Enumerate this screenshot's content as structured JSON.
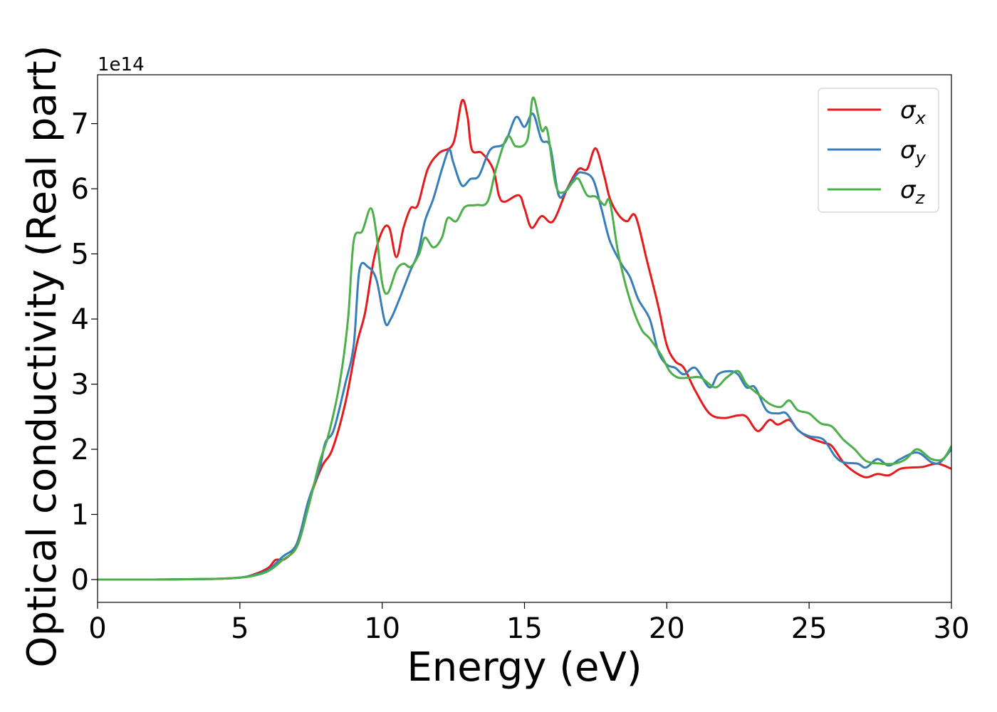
{
  "chart_data": {
    "type": "line",
    "xlabel": "Energy (eV)",
    "ylabel": "Optical conductivity (Real part)",
    "y_offset_label": "1e14",
    "xlim": [
      0,
      30
    ],
    "ylim": [
      -0.35,
      7.75
    ],
    "x_ticks": [
      0,
      5,
      10,
      15,
      20,
      25,
      30
    ],
    "x_tick_labels": [
      "0",
      "5",
      "10",
      "15",
      "20",
      "25",
      "30"
    ],
    "y_ticks": [
      0,
      1,
      2,
      3,
      4,
      5,
      6,
      7
    ],
    "y_tick_labels": [
      "0",
      "1",
      "2",
      "3",
      "4",
      "5",
      "6",
      "7"
    ],
    "grid": false,
    "legend_position": "top-right",
    "series": [
      {
        "name": "σ",
        "subscript": "x",
        "color": "#e41a1c",
        "points": [
          [
            0,
            0
          ],
          [
            2,
            0
          ],
          [
            4,
            0.01
          ],
          [
            5,
            0.03
          ],
          [
            5.5,
            0.08
          ],
          [
            6,
            0.18
          ],
          [
            6.25,
            0.3
          ],
          [
            6.6,
            0.32
          ],
          [
            7,
            0.55
          ],
          [
            7.5,
            1.3
          ],
          [
            7.9,
            1.75
          ],
          [
            8.25,
            2.0
          ],
          [
            8.7,
            2.7
          ],
          [
            9.1,
            3.6
          ],
          [
            9.4,
            4.1
          ],
          [
            9.7,
            4.9
          ],
          [
            10,
            5.35
          ],
          [
            10.25,
            5.4
          ],
          [
            10.5,
            4.95
          ],
          [
            10.75,
            5.4
          ],
          [
            11,
            5.7
          ],
          [
            11.25,
            5.75
          ],
          [
            11.6,
            6.3
          ],
          [
            12,
            6.55
          ],
          [
            12.5,
            6.7
          ],
          [
            12.8,
            7.35
          ],
          [
            13,
            7.1
          ],
          [
            13.15,
            6.6
          ],
          [
            13.5,
            6.55
          ],
          [
            13.9,
            6.3
          ],
          [
            14.1,
            5.9
          ],
          [
            14.3,
            5.8
          ],
          [
            14.8,
            5.9
          ],
          [
            15,
            5.7
          ],
          [
            15.25,
            5.4
          ],
          [
            15.6,
            5.58
          ],
          [
            16,
            5.5
          ],
          [
            16.5,
            6
          ],
          [
            16.9,
            6.3
          ],
          [
            17.2,
            6.3
          ],
          [
            17.5,
            6.62
          ],
          [
            17.8,
            6.2
          ],
          [
            18,
            5.85
          ],
          [
            18.3,
            5.6
          ],
          [
            18.6,
            5.5
          ],
          [
            18.9,
            5.58
          ],
          [
            19.3,
            4.9
          ],
          [
            19.7,
            4.2
          ],
          [
            20,
            3.6
          ],
          [
            20.3,
            3.35
          ],
          [
            20.6,
            3.25
          ],
          [
            21,
            2.9
          ],
          [
            21.5,
            2.55
          ],
          [
            22,
            2.48
          ],
          [
            22.5,
            2.52
          ],
          [
            22.8,
            2.5
          ],
          [
            23.2,
            2.28
          ],
          [
            23.6,
            2.45
          ],
          [
            23.9,
            2.38
          ],
          [
            24.3,
            2.45
          ],
          [
            24.6,
            2.3
          ],
          [
            25,
            2.18
          ],
          [
            25.5,
            2.1
          ],
          [
            25.8,
            2.05
          ],
          [
            26.2,
            1.8
          ],
          [
            26.6,
            1.65
          ],
          [
            27,
            1.57
          ],
          [
            27.4,
            1.62
          ],
          [
            27.8,
            1.6
          ],
          [
            28.2,
            1.7
          ],
          [
            28.6,
            1.72
          ],
          [
            29,
            1.73
          ],
          [
            29.5,
            1.78
          ],
          [
            30,
            1.7
          ]
        ]
      },
      {
        "name": "σ",
        "subscript": "y",
        "color": "#377eb8",
        "points": [
          [
            0,
            0
          ],
          [
            2,
            0
          ],
          [
            4,
            0.01
          ],
          [
            5,
            0.03
          ],
          [
            5.5,
            0.07
          ],
          [
            6,
            0.15
          ],
          [
            6.5,
            0.35
          ],
          [
            7,
            0.55
          ],
          [
            7.4,
            1.2
          ],
          [
            7.8,
            1.7
          ],
          [
            8,
            2.1
          ],
          [
            8.3,
            2.3
          ],
          [
            8.7,
            3.0
          ],
          [
            9,
            3.6
          ],
          [
            9.2,
            4.75
          ],
          [
            9.5,
            4.8
          ],
          [
            9.8,
            4.6
          ],
          [
            10.1,
            3.95
          ],
          [
            10.3,
            4.0
          ],
          [
            10.6,
            4.3
          ],
          [
            11,
            4.75
          ],
          [
            11.25,
            5.0
          ],
          [
            11.5,
            5.5
          ],
          [
            11.8,
            5.85
          ],
          [
            12.1,
            6.3
          ],
          [
            12.35,
            6.6
          ],
          [
            12.5,
            6.4
          ],
          [
            12.8,
            6.05
          ],
          [
            13.1,
            6.15
          ],
          [
            13.4,
            6.2
          ],
          [
            13.8,
            6.6
          ],
          [
            14.3,
            6.7
          ],
          [
            14.7,
            7.1
          ],
          [
            15,
            6.95
          ],
          [
            15.3,
            7.15
          ],
          [
            15.6,
            6.75
          ],
          [
            15.9,
            6.65
          ],
          [
            16.2,
            5.9
          ],
          [
            16.5,
            6.0
          ],
          [
            16.8,
            6.2
          ],
          [
            17,
            6.25
          ],
          [
            17.4,
            6.15
          ],
          [
            17.7,
            5.7
          ],
          [
            18,
            5.2
          ],
          [
            18.4,
            4.85
          ],
          [
            18.7,
            4.65
          ],
          [
            19,
            4.3
          ],
          [
            19.4,
            4.0
          ],
          [
            19.7,
            3.5
          ],
          [
            20,
            3.3
          ],
          [
            20.3,
            3.25
          ],
          [
            20.6,
            3.15
          ],
          [
            21,
            3.25
          ],
          [
            21.5,
            2.95
          ],
          [
            21.8,
            3.15
          ],
          [
            22.2,
            3.2
          ],
          [
            22.5,
            3.15
          ],
          [
            22.8,
            2.95
          ],
          [
            23.1,
            2.95
          ],
          [
            23.5,
            2.6
          ],
          [
            23.9,
            2.55
          ],
          [
            24.2,
            2.55
          ],
          [
            24.6,
            2.3
          ],
          [
            25,
            2.2
          ],
          [
            25.5,
            2.15
          ],
          [
            25.9,
            1.9
          ],
          [
            26.2,
            1.8
          ],
          [
            26.7,
            1.78
          ],
          [
            27,
            1.72
          ],
          [
            27.4,
            1.85
          ],
          [
            27.8,
            1.75
          ],
          [
            28.2,
            1.85
          ],
          [
            28.8,
            1.95
          ],
          [
            29.3,
            1.8
          ],
          [
            29.6,
            1.8
          ],
          [
            30,
            2.0
          ]
        ]
      },
      {
        "name": "σ",
        "subscript": "z",
        "color": "#4daf4a",
        "points": [
          [
            0,
            0
          ],
          [
            2,
            0
          ],
          [
            4,
            0.01
          ],
          [
            5,
            0.03
          ],
          [
            5.5,
            0.06
          ],
          [
            6,
            0.13
          ],
          [
            6.5,
            0.3
          ],
          [
            7,
            0.5
          ],
          [
            7.4,
            1.1
          ],
          [
            7.8,
            1.8
          ],
          [
            8.1,
            2.2
          ],
          [
            8.5,
            3.0
          ],
          [
            8.8,
            4.0
          ],
          [
            9,
            5.2
          ],
          [
            9.3,
            5.35
          ],
          [
            9.6,
            5.7
          ],
          [
            9.8,
            5.3
          ],
          [
            10,
            4.55
          ],
          [
            10.2,
            4.4
          ],
          [
            10.5,
            4.75
          ],
          [
            10.75,
            4.85
          ],
          [
            11,
            4.8
          ],
          [
            11.3,
            5.0
          ],
          [
            11.5,
            5.25
          ],
          [
            11.8,
            5.1
          ],
          [
            12.1,
            5.25
          ],
          [
            12.3,
            5.55
          ],
          [
            12.6,
            5.5
          ],
          [
            12.9,
            5.72
          ],
          [
            13.3,
            5.75
          ],
          [
            13.7,
            5.8
          ],
          [
            14,
            6.3
          ],
          [
            14.4,
            6.8
          ],
          [
            14.7,
            6.65
          ],
          [
            15.1,
            6.75
          ],
          [
            15.3,
            7.4
          ],
          [
            15.6,
            6.9
          ],
          [
            15.8,
            6.9
          ],
          [
            16.1,
            6.05
          ],
          [
            16.4,
            5.95
          ],
          [
            16.7,
            6.1
          ],
          [
            16.9,
            6.15
          ],
          [
            17.2,
            5.9
          ],
          [
            17.5,
            5.88
          ],
          [
            17.8,
            5.75
          ],
          [
            18,
            5.8
          ],
          [
            18.3,
            5.0
          ],
          [
            18.7,
            4.3
          ],
          [
            19.1,
            3.85
          ],
          [
            19.4,
            3.7
          ],
          [
            19.8,
            3.45
          ],
          [
            20.1,
            3.2
          ],
          [
            20.4,
            3.1
          ],
          [
            20.8,
            3.1
          ],
          [
            21.2,
            3.1
          ],
          [
            21.7,
            2.95
          ],
          [
            22.1,
            3.1
          ],
          [
            22.5,
            3.2
          ],
          [
            22.8,
            3.0
          ],
          [
            23.2,
            2.85
          ],
          [
            23.6,
            2.7
          ],
          [
            24,
            2.65
          ],
          [
            24.3,
            2.75
          ],
          [
            24.6,
            2.6
          ],
          [
            25,
            2.55
          ],
          [
            25.4,
            2.4
          ],
          [
            25.8,
            2.35
          ],
          [
            26.2,
            2.15
          ],
          [
            26.6,
            2.0
          ],
          [
            27,
            1.82
          ],
          [
            27.5,
            1.78
          ],
          [
            28,
            1.78
          ],
          [
            28.4,
            1.85
          ],
          [
            28.8,
            2.0
          ],
          [
            29.3,
            1.85
          ],
          [
            29.7,
            1.85
          ],
          [
            30,
            2.05
          ]
        ]
      }
    ]
  }
}
